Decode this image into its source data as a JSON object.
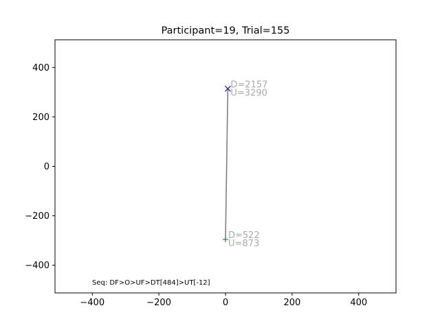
{
  "chart_data": {
    "type": "scatter",
    "title": "Participant=19, Trial=155",
    "xlabel": "",
    "ylabel": "",
    "xlim": [
      -512,
      512
    ],
    "ylim": [
      -512,
      512
    ],
    "xticks": [
      -400,
      -200,
      0,
      200,
      400
    ],
    "yticks": [
      -400,
      -200,
      0,
      200,
      400
    ],
    "xtick_labels": [
      "−400",
      "−200",
      "0",
      "200",
      "400"
    ],
    "ytick_labels": [
      "−400",
      "−200",
      "0",
      "200",
      "400"
    ],
    "grid": false,
    "trajectory": {
      "x": [
        0,
        7
      ],
      "y": [
        -296,
        314
      ],
      "color": "#808080"
    },
    "start_point": {
      "x": 0,
      "y": -296,
      "marker": "+",
      "color": "#2ca02c",
      "labels": [
        "D=522",
        "U=873"
      ]
    },
    "end_point": {
      "x": 7,
      "y": 314,
      "marker": "x",
      "color": "#1f1fbf",
      "labels": [
        "D=2157",
        "U=3290"
      ]
    },
    "annotation_color": "#aaaaaa",
    "sequence_text": "Seq: DF>O>UF>DT[484]>UT[-12]"
  }
}
